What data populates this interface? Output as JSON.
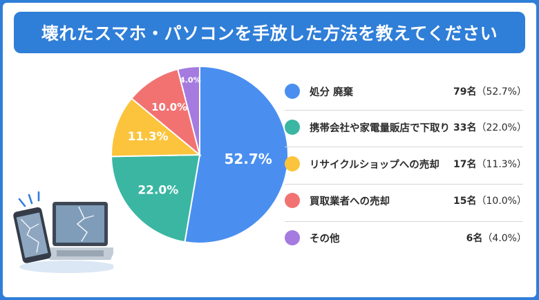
{
  "header": {
    "title": "壊れたスマホ・パソコンを手放した方法を教えてください"
  },
  "chart_data": {
    "type": "pie",
    "title": "壊れたスマホ・パソコンを手放した方法を教えてください",
    "categories": [
      "処分 廃棄",
      "携帯会社や家電量販店で下取り",
      "リサイクルショップへの売却",
      "買取業者への売却",
      "その他"
    ],
    "values": [
      52.7,
      22.0,
      11.3,
      10.0,
      4.0
    ],
    "counts": [
      79,
      33,
      17,
      15,
      6
    ],
    "slice_labels": [
      "52.7%",
      "22.0%",
      "11.3%",
      "10.0%",
      "4.0%"
    ],
    "colors": [
      "#4a8ff0",
      "#3bb6a2",
      "#fbc43c",
      "#f27272",
      "#a57be0"
    ],
    "legend_placement": "right"
  },
  "legend": [
    {
      "label": "処分 廃棄",
      "count": "79名",
      "pct": "（52.7%）",
      "color": "#4a8ff0"
    },
    {
      "label": "携帯会社や家電量販店で下取り",
      "count": "33名",
      "pct": "（22.0%）",
      "color": "#3bb6a2"
    },
    {
      "label": "リサイクルショップへの売却",
      "count": "17名",
      "pct": "（11.3%）",
      "color": "#fbc43c"
    },
    {
      "label": "買取業者への売却",
      "count": "15名",
      "pct": "（10.0%）",
      "color": "#f27272"
    },
    {
      "label": "その他",
      "count": "6名",
      "pct": "（4.0%）",
      "color": "#a57be0"
    }
  ],
  "illustration": {
    "icon": "broken-devices-icon"
  }
}
